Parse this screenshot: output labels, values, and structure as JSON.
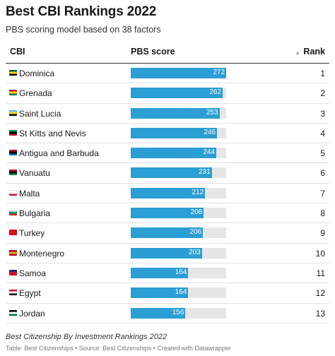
{
  "title": "Best CBI Rankings 2022",
  "subtitle": "PBS scoring model based on 38 factors",
  "columns": {
    "cbi": "CBI",
    "score": "PBS score",
    "rank": "Rank"
  },
  "sort_icon": "▲",
  "footer": {
    "note": "Best Citizenship By Investment Rankings 2022",
    "source": "Table: Best Citizenships • Source: Best Citizenships • Created with Datawrapper"
  },
  "colors": {
    "bar": "#2b9ed4",
    "bar_track": "#e6e6e6"
  },
  "chart_data": {
    "type": "table",
    "max_score": 272,
    "rows": [
      {
        "country": "Dominica",
        "score": 272,
        "rank": 1,
        "flag": "dominica-flag-icon",
        "flag_colors": [
          "#006b3f",
          "#fcd116",
          "#000000"
        ]
      },
      {
        "country": "Grenada",
        "score": 262,
        "rank": 2,
        "flag": "grenada-flag-icon",
        "flag_colors": [
          "#ce1126",
          "#fcd116",
          "#007a5e"
        ]
      },
      {
        "country": "Saint Lucia",
        "score": 253,
        "rank": 3,
        "flag": "saint-lucia-flag-icon",
        "flag_colors": [
          "#66ccff",
          "#fcd116",
          "#000000"
        ]
      },
      {
        "country": "St Kitts and Nevis",
        "score": 246,
        "rank": 4,
        "flag": "st-kitts-flag-icon",
        "flag_colors": [
          "#009e49",
          "#000000",
          "#ce1126"
        ]
      },
      {
        "country": "Antigua and Barbuda",
        "score": 244,
        "rank": 5,
        "flag": "antigua-flag-icon",
        "flag_colors": [
          "#ce1126",
          "#000000",
          "#0072c6"
        ]
      },
      {
        "country": "Vanuatu",
        "score": 231,
        "rank": 6,
        "flag": "vanuatu-flag-icon",
        "flag_colors": [
          "#d21034",
          "#000000",
          "#009543"
        ]
      },
      {
        "country": "Malta",
        "score": 212,
        "rank": 7,
        "flag": "malta-flag-icon",
        "flag_colors": [
          "#ffffff",
          "#ffffff",
          "#cf142b"
        ]
      },
      {
        "country": "Bulgaria",
        "score": 208,
        "rank": 8,
        "flag": "bulgaria-flag-icon",
        "flag_colors": [
          "#ffffff",
          "#00966e",
          "#d62612"
        ]
      },
      {
        "country": "Turkey",
        "score": 206,
        "rank": 9,
        "flag": "turkey-flag-icon",
        "flag_colors": [
          "#e30a17",
          "#e30a17",
          "#e30a17"
        ]
      },
      {
        "country": "Montenegro",
        "score": 203,
        "rank": 10,
        "flag": "montenegro-flag-icon",
        "flag_colors": [
          "#c40308",
          "#d4af37",
          "#c40308"
        ]
      },
      {
        "country": "Samoa",
        "score": 164,
        "rank": 11,
        "flag": "samoa-flag-icon",
        "flag_colors": [
          "#002b7f",
          "#ce1126",
          "#ce1126"
        ]
      },
      {
        "country": "Egypt",
        "score": 164,
        "rank": 12,
        "flag": "egypt-flag-icon",
        "flag_colors": [
          "#ce1126",
          "#ffffff",
          "#000000"
        ]
      },
      {
        "country": "Jordan",
        "score": 156,
        "rank": 13,
        "flag": "jordan-flag-icon",
        "flag_colors": [
          "#000000",
          "#ffffff",
          "#007a3d"
        ]
      }
    ]
  }
}
